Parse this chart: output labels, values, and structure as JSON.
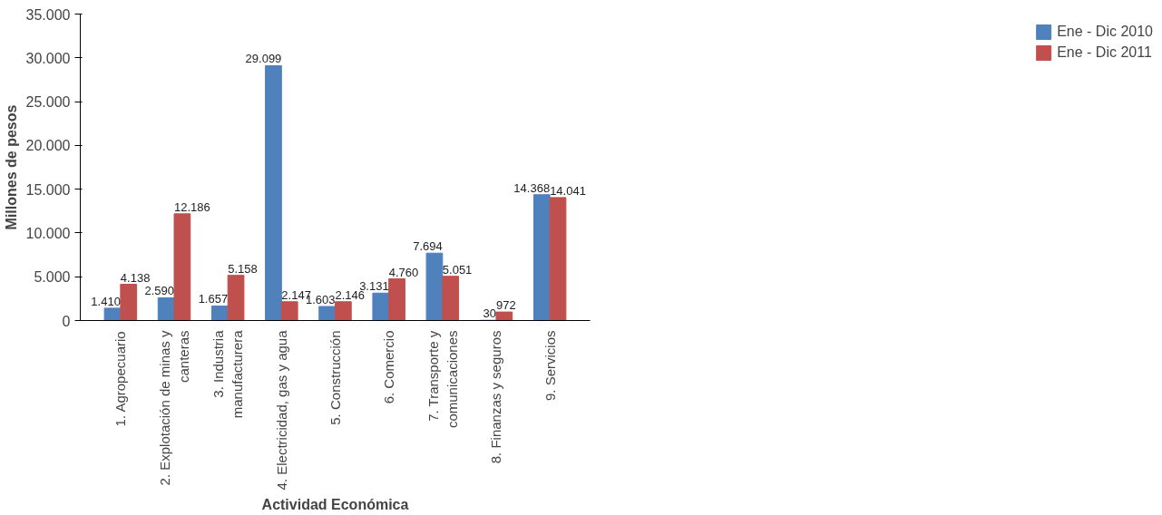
{
  "chart_data": {
    "type": "bar",
    "xlabel": "Actividad Económica",
    "ylabel": "Millones de pesos",
    "categories": [
      "1. Agropecuario",
      "2. Explotación de minas y\ncanteras",
      "3. Industria\nmanufacturera",
      "4. Electricidad, gas y agua",
      "5. Construcción",
      "6. Comercio",
      "7. Transporte y\ncomunicaciones",
      "8. Finanzas y seguros",
      "9. Servicios"
    ],
    "series": [
      {
        "name": "Ene - Dic 2010",
        "color": "#4f81bd",
        "values": [
          1410,
          2590,
          1657,
          29099,
          1603,
          3131,
          7694,
          30,
          14368
        ],
        "value_labels": [
          "1.410",
          "2.590",
          "1.657",
          "29.099",
          "1.603",
          "3.131",
          "7.694",
          "30",
          "14.368"
        ]
      },
      {
        "name": "Ene - Dic 2011",
        "color": "#c0504d",
        "values": [
          4138,
          12186,
          5158,
          2147,
          2146,
          4760,
          5051,
          972,
          14041
        ],
        "value_labels": [
          "4.138",
          "12.186",
          "5.158",
          "2.147",
          "2.146",
          "4.760",
          "5.051",
          "972",
          "14.041"
        ]
      }
    ],
    "ylim": [
      0,
      35000
    ],
    "yticks": [
      {
        "value": 0,
        "label": "0"
      },
      {
        "value": 5000,
        "label": "5.000"
      },
      {
        "value": 10000,
        "label": "10.000"
      },
      {
        "value": 15000,
        "label": "15.000"
      },
      {
        "value": 20000,
        "label": "20.000"
      },
      {
        "value": 25000,
        "label": "25.000"
      },
      {
        "value": 30000,
        "label": "30.000"
      },
      {
        "value": 35000,
        "label": "35.000"
      }
    ],
    "grid": false,
    "legend": "right"
  }
}
